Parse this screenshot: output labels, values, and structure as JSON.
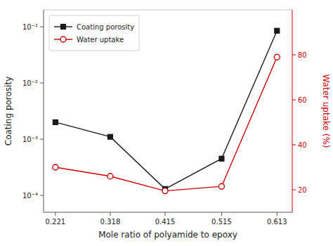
{
  "chart_data": {
    "type": "line",
    "x_label": "Mole ratio of polyamide to epoxy",
    "y_label": "Coating porosity",
    "y2_label": "Water uptake (%)",
    "x": [
      0.221,
      0.318,
      0.415,
      0.515,
      0.613
    ],
    "series": [
      {
        "name": "Coating porosity",
        "color": "#1a1a1a",
        "marker": "square",
        "values": [
          0.002,
          0.0011,
          0.00013,
          0.00045,
          0.085
        ]
      },
      {
        "name": "Water uptake",
        "color": "#cc0000",
        "marker": "open-circle",
        "axis": "y2",
        "values": [
          30.0,
          26.0,
          19.5,
          21.5,
          79.0
        ]
      }
    ],
    "log": "y",
    "xlim": [
      0.2,
      0.64
    ],
    "xticks": [
      0.221,
      0.318,
      0.415,
      0.515,
      0.613
    ],
    "ylim": [
      5e-05,
      0.2
    ],
    "yticks": [
      {
        "value": 0.0001,
        "label": "10⁻⁴"
      },
      {
        "value": 0.001,
        "label": "10⁻³"
      },
      {
        "value": 0.01,
        "label": "10⁻²"
      },
      {
        "value": 0.1,
        "label": "10⁻¹"
      }
    ],
    "y2lim": [
      10,
      100
    ],
    "y2ticks": [
      20,
      40,
      60,
      80
    ],
    "legend": "upper left"
  }
}
